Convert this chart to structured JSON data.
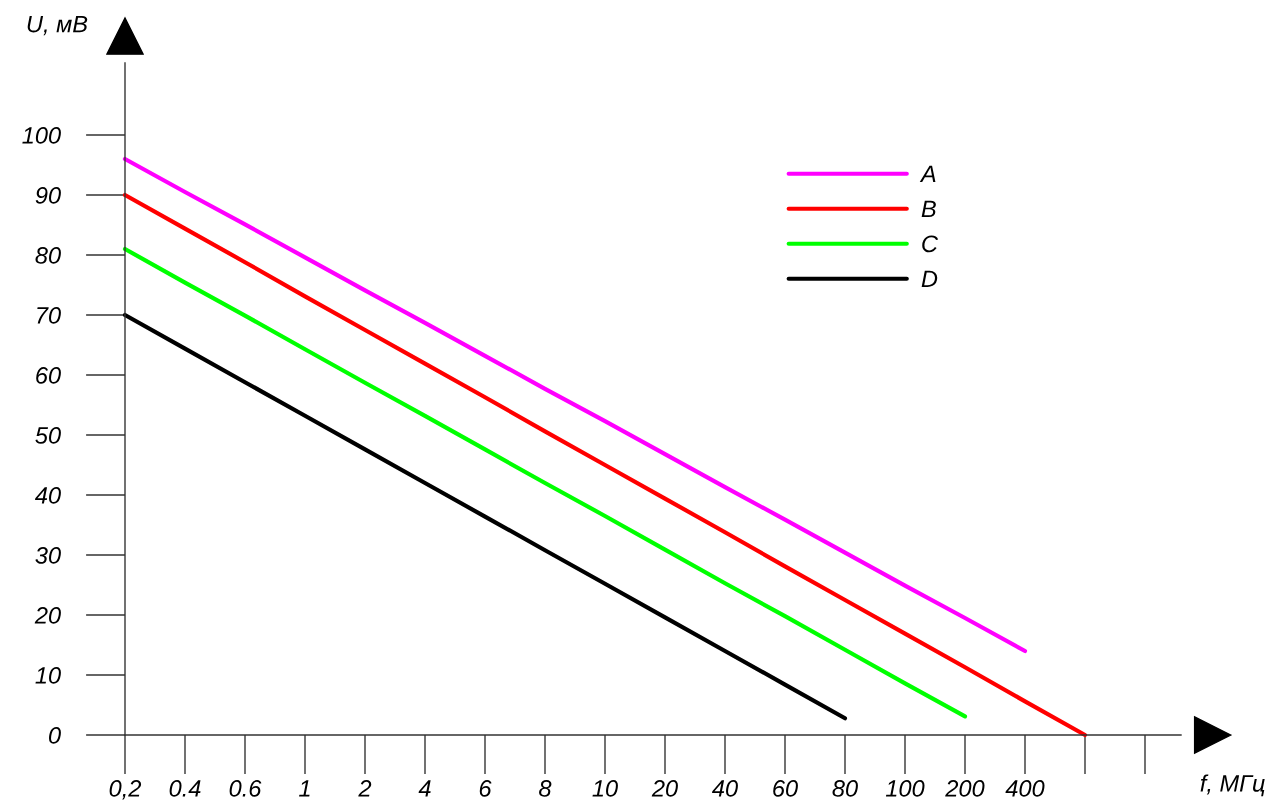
{
  "chart_data": {
    "type": "line",
    "xlabel": "f, МГц",
    "ylabel": "U, мВ",
    "categories": [
      "0,2",
      "0.4",
      "0.6",
      "1",
      "2",
      "4",
      "6",
      "8",
      "10",
      "20",
      "40",
      "60",
      "80",
      "100",
      "200",
      "400",
      null,
      null
    ],
    "ylim": [
      0,
      112
    ],
    "yticks": [
      0,
      10,
      20,
      30,
      40,
      50,
      60,
      70,
      80,
      90,
      100
    ],
    "grid": false,
    "legend": "top right",
    "marker": "none",
    "line_style": "solid",
    "series": [
      {
        "name": "A",
        "color": "#ff00ff",
        "values": [
          96,
          90.5,
          85.1,
          79.6,
          74.1,
          68.7,
          63.2,
          57.7,
          52.3,
          46.8,
          41.3,
          35.9,
          30.4,
          24.9,
          19.5,
          14,
          null,
          null
        ]
      },
      {
        "name": "B",
        "color": "#ff0000",
        "values": [
          90,
          84.4,
          78.8,
          73.1,
          67.5,
          61.9,
          56.3,
          50.6,
          45,
          39.4,
          33.8,
          28.1,
          22.5,
          16.9,
          11.3,
          5.6,
          0,
          null
        ]
      },
      {
        "name": "C",
        "color": "#00ff00",
        "values": [
          81,
          75.4,
          69.9,
          64.3,
          58.7,
          53.2,
          47.6,
          42,
          36.5,
          30.9,
          25.3,
          19.8,
          14.2,
          8.6,
          3.1,
          null,
          null,
          null
        ]
      },
      {
        "name": "D",
        "color": "#000000",
        "values": [
          70,
          64.4,
          58.8,
          53.2,
          47.6,
          42,
          36.4,
          30.8,
          25.2,
          19.6,
          14,
          8.4,
          2.8,
          null,
          null,
          null,
          null,
          null
        ]
      }
    ]
  }
}
